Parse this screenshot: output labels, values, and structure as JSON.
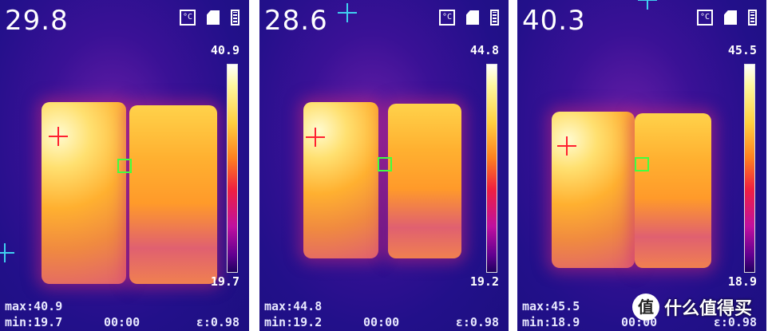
{
  "panels": [
    {
      "center_temp": "29.8",
      "scale_max": "40.9",
      "scale_min": "19.7",
      "max": "max:40.9",
      "min": "min:19.7",
      "time": "00:00",
      "emissivity": "ε:0.98"
    },
    {
      "center_temp": "28.6",
      "scale_max": "44.8",
      "scale_min": "19.2",
      "max": "max:44.8",
      "min": "min:19.2",
      "time": "00:00",
      "emissivity": "ε:0.98"
    },
    {
      "center_temp": "40.3",
      "scale_max": "45.5",
      "scale_min": "18.9",
      "max": "max:45.5",
      "min": "min:18.9",
      "time": "00:00",
      "emissivity": "ε:0.98"
    }
  ],
  "icons": [
    "celsius-icon",
    "sd-card-icon",
    "battery-icon"
  ],
  "status_icon_text": "°C",
  "watermark": {
    "logo": "值",
    "text": "什么值得买"
  }
}
